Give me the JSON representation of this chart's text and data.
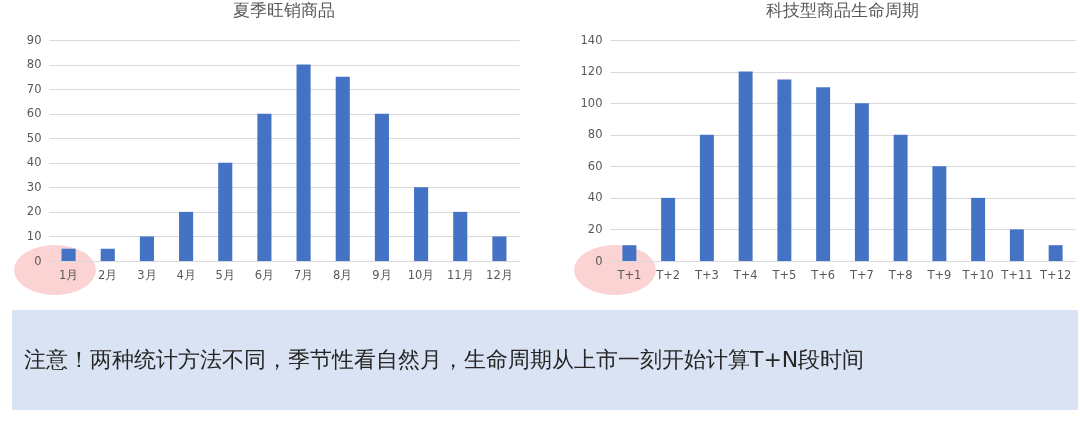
{
  "chart_data": [
    {
      "type": "bar",
      "title": "夏季旺销商品",
      "categories": [
        "1月",
        "2月",
        "3月",
        "4月",
        "5月",
        "6月",
        "7月",
        "8月",
        "9月",
        "10月",
        "11月",
        "12月"
      ],
      "values": [
        5,
        5,
        10,
        20,
        40,
        60,
        80,
        75,
        60,
        30,
        20,
        10
      ],
      "color": "#4472c4",
      "ylim": [
        0,
        90
      ],
      "yticks": [
        0,
        10,
        20,
        30,
        40,
        50,
        60,
        70,
        80,
        90
      ],
      "grid": "y"
    },
    {
      "type": "bar",
      "title": "科技型商品生命周期",
      "categories": [
        "T+1",
        "T+2",
        "T+3",
        "T+4",
        "T+5",
        "T+6",
        "T+7",
        "T+8",
        "T+9",
        "T+10",
        "T+11",
        "T+12"
      ],
      "values": [
        10,
        40,
        80,
        120,
        115,
        110,
        100,
        80,
        60,
        40,
        20,
        10
      ],
      "color": "#4472c4",
      "ylim": [
        0,
        140
      ],
      "yticks": [
        0,
        20,
        40,
        60,
        80,
        100,
        120,
        140
      ],
      "grid": "y"
    },
    {
      "type": "other",
      "annotations": [
        "注意！两种统计方法不同，季节性看自然月，生命周期从上市一刻开始计算T+N段时间"
      ]
    }
  ]
}
